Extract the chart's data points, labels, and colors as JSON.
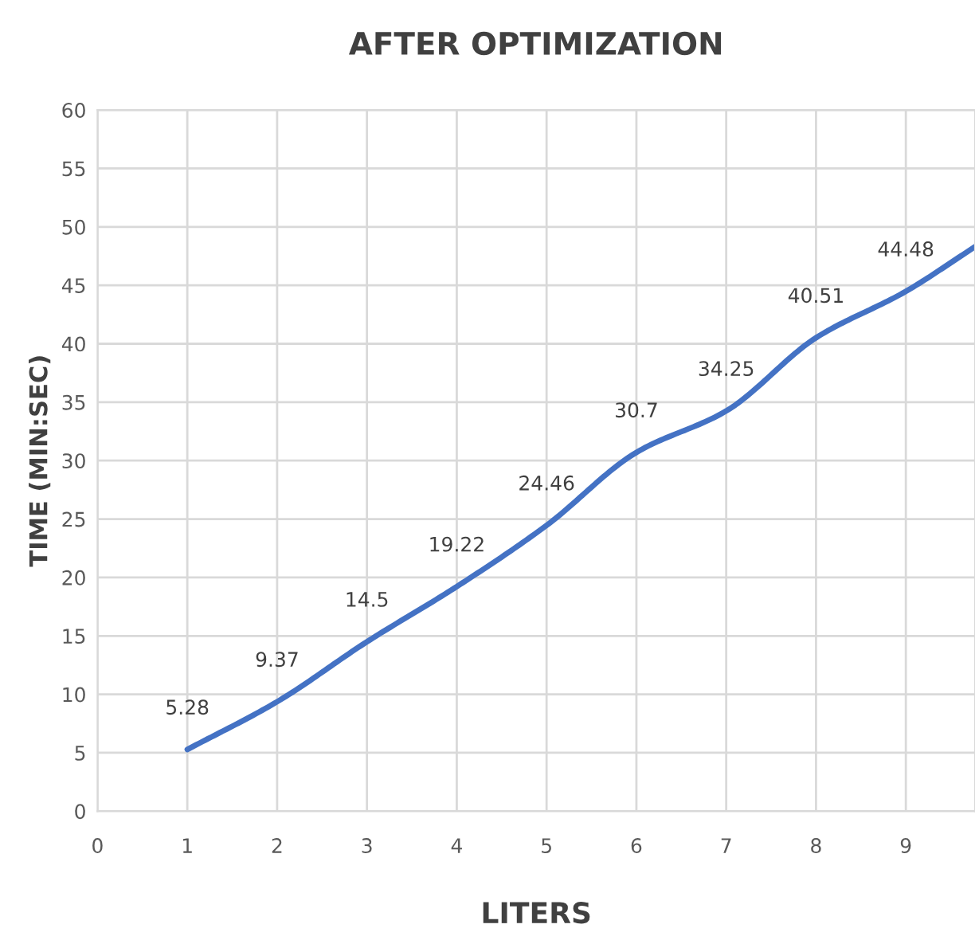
{
  "chart_data": {
    "type": "line",
    "title": "AFTER OPTIMIZATION",
    "xlabel": "LITERS",
    "ylabel": "TIME (MIN:SEC)",
    "x": [
      1,
      2,
      3,
      4,
      5,
      6,
      7,
      8,
      9,
      9.77
    ],
    "series": [
      {
        "color": "#4472c4",
        "values": [
          5.28,
          9.37,
          14.5,
          19.22,
          24.46,
          30.7,
          34.25,
          40.51,
          44.48,
          48.3
        ],
        "value_labels": [
          "5.28",
          "9.37",
          "14.5",
          "19.22",
          "24.46",
          "30.7",
          "34.25",
          "40.51",
          "44.48",
          null
        ]
      }
    ],
    "xlim": [
      0,
      9.77
    ],
    "xticks": [
      0,
      1,
      2,
      3,
      4,
      5,
      6,
      7,
      8,
      9
    ],
    "ylim": [
      0,
      60
    ],
    "yticks": [
      0,
      5,
      10,
      15,
      20,
      25,
      30,
      35,
      40,
      45,
      50,
      55,
      60
    ],
    "grid": true,
    "legend": false,
    "marker": "none",
    "line_style": "solid"
  }
}
